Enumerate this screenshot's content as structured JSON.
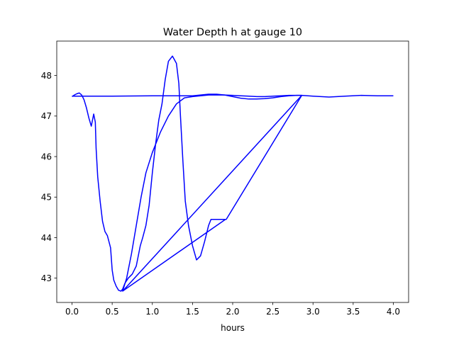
{
  "chart_data": {
    "type": "line",
    "title": "Water Depth h at gauge 10",
    "xlabel": "hours",
    "ylabel": "",
    "xlim": [
      -0.19,
      4.19
    ],
    "ylim": [
      42.4,
      48.85
    ],
    "xticks": [
      0.0,
      0.5,
      1.0,
      1.5,
      2.0,
      2.5,
      3.0,
      3.5,
      4.0
    ],
    "xtick_labels": [
      "0.0",
      "0.5",
      "1.0",
      "1.5",
      "2.0",
      "2.5",
      "3.0",
      "3.5",
      "4.0"
    ],
    "yticks": [
      43,
      44,
      45,
      46,
      47,
      48
    ],
    "ytick_labels": [
      "43",
      "44",
      "45",
      "46",
      "47",
      "48"
    ],
    "grid": false,
    "color": "#0000ff",
    "series": [
      {
        "x": [
          0.0,
          0.03,
          0.06,
          0.09,
          0.12,
          0.15,
          0.18,
          0.21,
          0.24,
          0.27,
          0.29,
          0.3,
          0.32,
          0.35,
          0.38,
          0.41,
          0.44,
          0.46,
          0.48,
          0.5,
          0.52,
          0.55,
          0.58,
          0.61,
          0.63,
          0.66,
          0.7,
          0.75,
          0.8,
          0.85,
          0.88,
          0.92,
          0.96,
          1.0,
          1.04,
          1.08,
          1.12,
          1.16,
          1.2,
          1.25,
          1.3,
          1.33,
          1.35,
          1.38,
          1.41,
          1.45,
          1.5,
          1.55,
          1.6,
          1.65,
          1.7,
          1.73,
          1.76,
          1.79,
          1.82,
          1.85,
          1.88,
          1.91,
          0.63,
          0.68,
          0.74,
          0.8,
          0.86,
          0.92,
          1.0,
          1.1,
          1.2,
          1.3,
          1.4,
          1.5,
          1.6,
          1.7,
          1.8,
          1.9,
          2.0,
          2.1,
          2.2,
          2.3,
          2.4,
          2.5,
          2.6,
          2.7,
          2.86,
          0.63,
          2.86,
          1.92,
          2.86,
          3.0,
          3.2,
          3.4,
          3.6,
          3.8,
          4.0
        ],
        "y": [
          47.48,
          47.52,
          47.55,
          47.57,
          47.52,
          47.4,
          47.2,
          46.95,
          46.75,
          47.05,
          46.85,
          46.2,
          45.5,
          44.9,
          44.4,
          44.15,
          44.05,
          43.9,
          43.75,
          43.2,
          42.95,
          42.8,
          42.7,
          42.68,
          42.73,
          42.88,
          43.0,
          43.1,
          43.3,
          43.8,
          44.0,
          44.3,
          44.8,
          45.6,
          46.3,
          46.9,
          47.3,
          47.9,
          48.35,
          48.48,
          48.3,
          47.8,
          47.0,
          45.9,
          44.9,
          44.3,
          43.8,
          43.45,
          43.55,
          43.9,
          44.3,
          44.45,
          44.45,
          44.45,
          44.45,
          44.45,
          44.45,
          44.45,
          42.68,
          43.0,
          43.6,
          44.3,
          45.0,
          45.6,
          46.1,
          46.6,
          47.0,
          47.3,
          47.45,
          47.48,
          47.5,
          47.52,
          47.52,
          47.52,
          47.51,
          47.5,
          47.49,
          47.48,
          47.48,
          47.49,
          47.5,
          47.51,
          47.51,
          42.68,
          47.51,
          44.45,
          47.51,
          47.49,
          47.47,
          47.49,
          47.51,
          47.5,
          47.5
        ]
      },
      {
        "x": [
          0.0,
          0.5,
          1.0,
          1.5,
          1.6,
          1.7,
          1.8,
          1.9,
          2.0,
          2.1,
          2.2,
          2.3,
          2.4,
          2.5,
          2.6,
          2.7,
          2.8,
          2.86
        ],
        "y": [
          47.49,
          47.49,
          47.5,
          47.5,
          47.52,
          47.54,
          47.54,
          47.52,
          47.48,
          47.44,
          47.42,
          47.42,
          47.43,
          47.45,
          47.48,
          47.5,
          47.51,
          47.51
        ]
      }
    ]
  }
}
